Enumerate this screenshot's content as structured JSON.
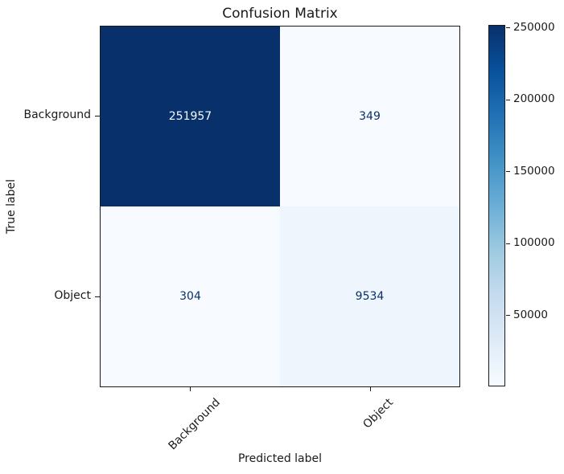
{
  "chart_data": {
    "type": "heatmap",
    "title": "Confusion Matrix",
    "xlabel": "Predicted label",
    "ylabel": "True label",
    "x_tick_labels": [
      "Background",
      "Object"
    ],
    "y_tick_labels": [
      "Background",
      "Object"
    ],
    "matrix": [
      [
        251957,
        349
      ],
      [
        304,
        9534
      ]
    ],
    "colormap": "Blues",
    "vmin": 304,
    "vmax": 251957,
    "colorbar_ticks": [
      250000,
      200000,
      150000,
      100000,
      50000
    ],
    "cell_colors": [
      [
        "#08306b",
        "#f7fbff"
      ],
      [
        "#f7fbff",
        "#eff5fc"
      ]
    ],
    "cell_text_colors": [
      [
        "#f7fbff",
        "#08306b"
      ],
      [
        "#08306b",
        "#08306b"
      ]
    ],
    "colormap_stops": [
      "#f7fbff",
      "#deebf7",
      "#c6dbef",
      "#9ecae1",
      "#6baed6",
      "#4292c6",
      "#2171b5",
      "#08519c",
      "#08306b"
    ],
    "legend_position": "right-colorbar",
    "grid": false
  }
}
